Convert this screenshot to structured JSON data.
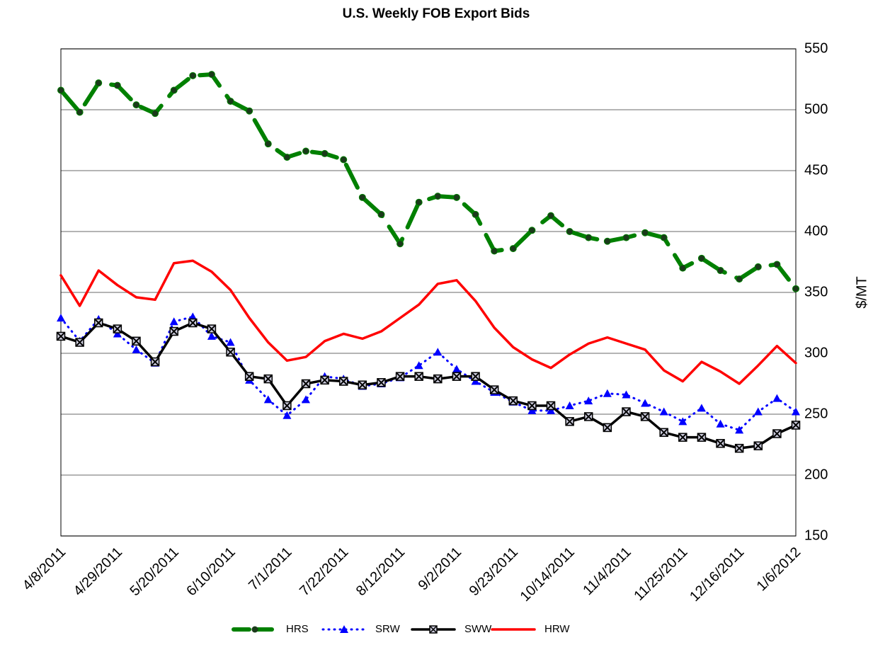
{
  "chart_data": {
    "type": "line",
    "title": "U.S. Weekly FOB Export Bids",
    "y_label": "$/MT",
    "categories": [
      "4/8/2011",
      null,
      null,
      "4/29/2011",
      null,
      null,
      "5/20/2011",
      null,
      null,
      "6/10/2011",
      null,
      null,
      "7/1/2011",
      null,
      null,
      "7/22/2011",
      null,
      null,
      "8/12/2011",
      null,
      null,
      "9/2/2011",
      null,
      null,
      "9/23/2011",
      null,
      null,
      "10/14/2011",
      null,
      null,
      "11/4/2011",
      null,
      null,
      "11/25/2011",
      null,
      null,
      "12/16/2011",
      null,
      null,
      "1/6/2012"
    ],
    "series": [
      {
        "name": "HRS",
        "color": "#008000",
        "dash": "dashed",
        "marker": "circle",
        "values": [
          516,
          498,
          522,
          520,
          504,
          497,
          516,
          528,
          529,
          507,
          499,
          472,
          461,
          466,
          464,
          459,
          428,
          414,
          390,
          424,
          429,
          428,
          414,
          384,
          386,
          401,
          413,
          400,
          395,
          392,
          395,
          399,
          395,
          370,
          378,
          368,
          361,
          371,
          373,
          353
        ]
      },
      {
        "name": "SRW",
        "color": "#0000ff",
        "dash": "dotted",
        "marker": "triangle",
        "values": [
          329,
          310,
          328,
          316,
          303,
          292,
          326,
          330,
          314,
          309,
          278,
          262,
          249,
          262,
          281,
          279,
          273,
          275,
          280,
          290,
          301,
          287,
          277,
          268,
          260,
          253,
          253,
          257,
          261,
          267,
          266,
          259,
          252,
          244,
          255,
          242,
          237,
          252,
          263,
          252
        ]
      },
      {
        "name": "SWW",
        "color": "#000000",
        "dash": "solid",
        "marker": "xsquare",
        "values": [
          314,
          309,
          325,
          320,
          310,
          293,
          318,
          325,
          320,
          301,
          281,
          279,
          257,
          275,
          278,
          277,
          274,
          276,
          281,
          281,
          279,
          281,
          281,
          270,
          261,
          257,
          257,
          244,
          248,
          239,
          252,
          248,
          235,
          231,
          231,
          226,
          222,
          224,
          234,
          241
        ]
      },
      {
        "name": "HRW",
        "color": "#ff0000",
        "dash": "solid",
        "marker": "none",
        "values": [
          364,
          339,
          368,
          356,
          346,
          344,
          374,
          376,
          367,
          352,
          329,
          309,
          294,
          297,
          310,
          316,
          312,
          318,
          329,
          340,
          357,
          360,
          343,
          321,
          305,
          295,
          288,
          299,
          308,
          313,
          308,
          303,
          286,
          277,
          293,
          285,
          275,
          290,
          306,
          292
        ]
      }
    ],
    "ylim": [
      150,
      550
    ],
    "yticks": [
      150,
      200,
      250,
      300,
      350,
      400,
      450,
      500,
      550
    ],
    "y_axis_side": "right",
    "grid": true,
    "legend": "bottom"
  }
}
